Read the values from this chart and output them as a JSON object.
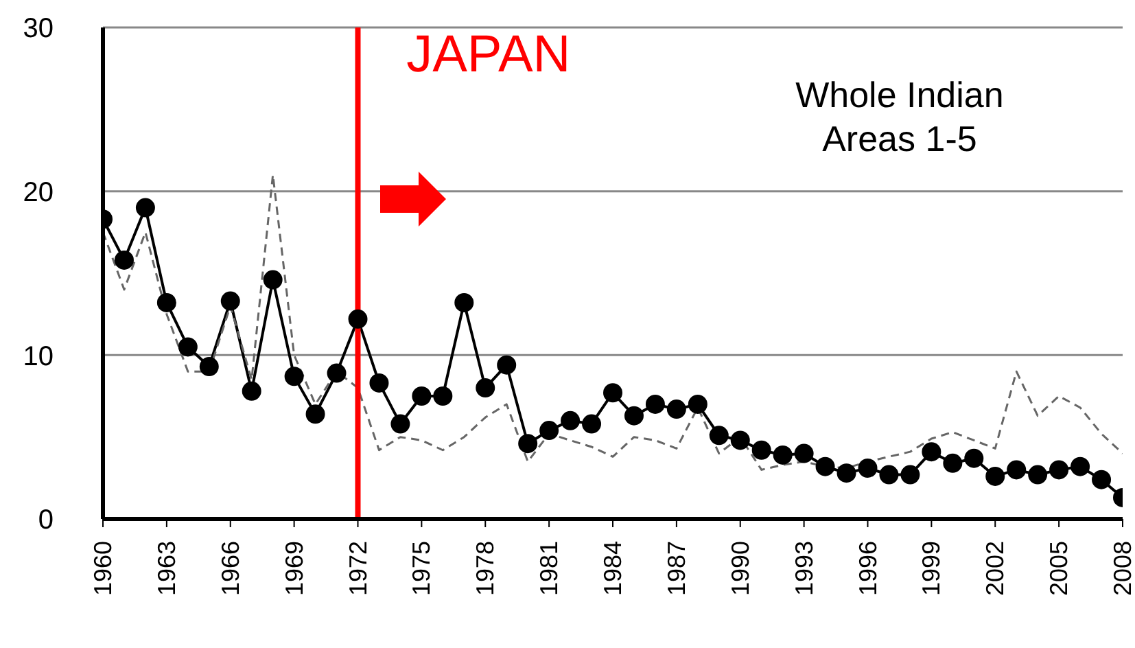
{
  "chart_data": {
    "type": "line",
    "x": [
      1960,
      1961,
      1962,
      1963,
      1964,
      1965,
      1966,
      1967,
      1968,
      1969,
      1970,
      1971,
      1972,
      1973,
      1974,
      1975,
      1976,
      1977,
      1978,
      1979,
      1980,
      1981,
      1982,
      1983,
      1984,
      1985,
      1986,
      1987,
      1988,
      1989,
      1990,
      1991,
      1992,
      1993,
      1994,
      1995,
      1996,
      1997,
      1998,
      1999,
      2000,
      2001,
      2002,
      2003,
      2004,
      2005,
      2006,
      2007,
      2008
    ],
    "series": [
      {
        "color": "#000000",
        "marker": "circle",
        "line_style": "solid",
        "values": [
          18.3,
          15.8,
          19.0,
          13.2,
          10.5,
          9.3,
          13.3,
          7.8,
          14.6,
          8.7,
          6.4,
          8.9,
          12.2,
          8.3,
          5.8,
          7.5,
          7.5,
          13.2,
          8.0,
          9.4,
          4.6,
          5.4,
          6.0,
          5.8,
          7.7,
          6.3,
          7.0,
          6.7,
          7.0,
          5.1,
          4.8,
          4.2,
          3.9,
          4.0,
          3.2,
          2.8,
          3.1,
          2.7,
          2.7,
          4.1,
          3.4,
          3.7,
          2.6,
          3.0,
          2.7,
          3.0,
          3.2,
          2.4,
          1.3
        ]
      },
      {
        "color": "#666666",
        "marker": "none",
        "line_style": "dashed",
        "values": [
          17.5,
          14.0,
          17.5,
          12.5,
          9.0,
          9.0,
          13.0,
          8.5,
          21.0,
          10.0,
          7.0,
          9.0,
          8.0,
          4.2,
          5.0,
          4.8,
          4.2,
          5.0,
          6.2,
          7.0,
          3.5,
          5.2,
          4.8,
          4.4,
          3.8,
          5.0,
          4.8,
          4.3,
          6.8,
          4.0,
          5.0,
          3.0,
          3.3,
          3.5,
          3.2,
          3.1,
          3.5,
          3.8,
          4.1,
          4.9,
          5.3,
          4.8,
          4.3,
          9.0,
          6.3,
          7.5,
          6.8,
          5.2,
          4.0
        ]
      }
    ],
    "xlim": [
      1960,
      2008
    ],
    "xticks": [
      1960,
      1963,
      1966,
      1969,
      1972,
      1975,
      1978,
      1981,
      1984,
      1987,
      1990,
      1993,
      1996,
      1999,
      2002,
      2005,
      2008
    ],
    "ylim": [
      0,
      30
    ],
    "yticks": [
      0,
      10,
      20,
      30
    ],
    "grid": "y",
    "ref_lines": [
      {
        "axis": "x",
        "value": 1972,
        "label": "JAPAN",
        "color": "#ff0000"
      }
    ],
    "annotations": [
      "Whole Indian Areas 1-5"
    ]
  }
}
